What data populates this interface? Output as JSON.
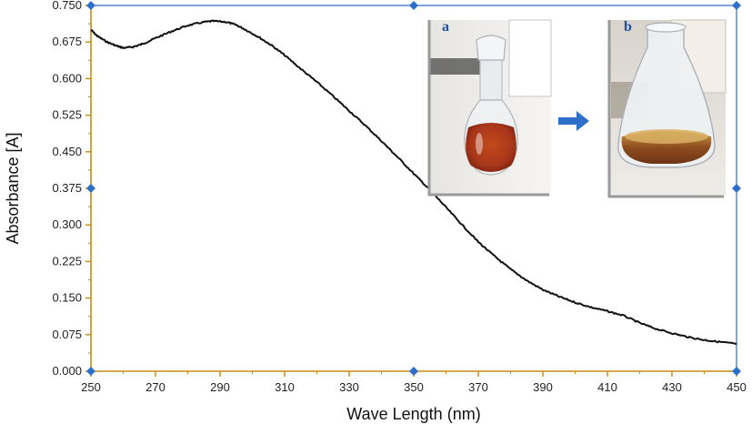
{
  "chart_data": {
    "type": "line",
    "title": "",
    "xlabel": "Wave Length (nm)",
    "ylabel": "Absorbance [A]",
    "xlim": [
      250,
      450
    ],
    "ylim": [
      0,
      0.75
    ],
    "x_ticks": [
      "250",
      "270",
      "290",
      "310",
      "330",
      "350",
      "370",
      "390",
      "410",
      "430",
      "450"
    ],
    "y_ticks": [
      "0.000",
      "0.075",
      "0.150",
      "0.225",
      "0.300",
      "0.375",
      "0.450",
      "0.525",
      "0.600",
      "0.675",
      "0.750"
    ],
    "grid": false,
    "series": [
      {
        "color": "#111111",
        "x": [
          250,
          252,
          255,
          258,
          260,
          263,
          266,
          270,
          275,
          280,
          285,
          288,
          292,
          295,
          298,
          302,
          306,
          310,
          315,
          320,
          325,
          330,
          335,
          340,
          345,
          350,
          355,
          360,
          365,
          370,
          375,
          380,
          385,
          390,
          395,
          400,
          405,
          410,
          415,
          420,
          425,
          430,
          435,
          440,
          445,
          450
        ],
        "y": [
          0.7,
          0.687,
          0.675,
          0.667,
          0.663,
          0.665,
          0.671,
          0.683,
          0.697,
          0.709,
          0.716,
          0.718,
          0.716,
          0.71,
          0.7,
          0.685,
          0.668,
          0.648,
          0.62,
          0.593,
          0.564,
          0.534,
          0.504,
          0.472,
          0.439,
          0.405,
          0.372,
          0.336,
          0.3,
          0.265,
          0.236,
          0.209,
          0.186,
          0.167,
          0.153,
          0.141,
          0.131,
          0.123,
          0.114,
          0.099,
          0.087,
          0.078,
          0.07,
          0.064,
          0.06,
          0.056
        ]
      }
    ],
    "insets": [
      {
        "label": "a",
        "description_color": "#9a3a1a"
      },
      {
        "label": "b",
        "description_color": "#8a5a1a"
      }
    ],
    "accent_color": "#2e6fc9"
  }
}
